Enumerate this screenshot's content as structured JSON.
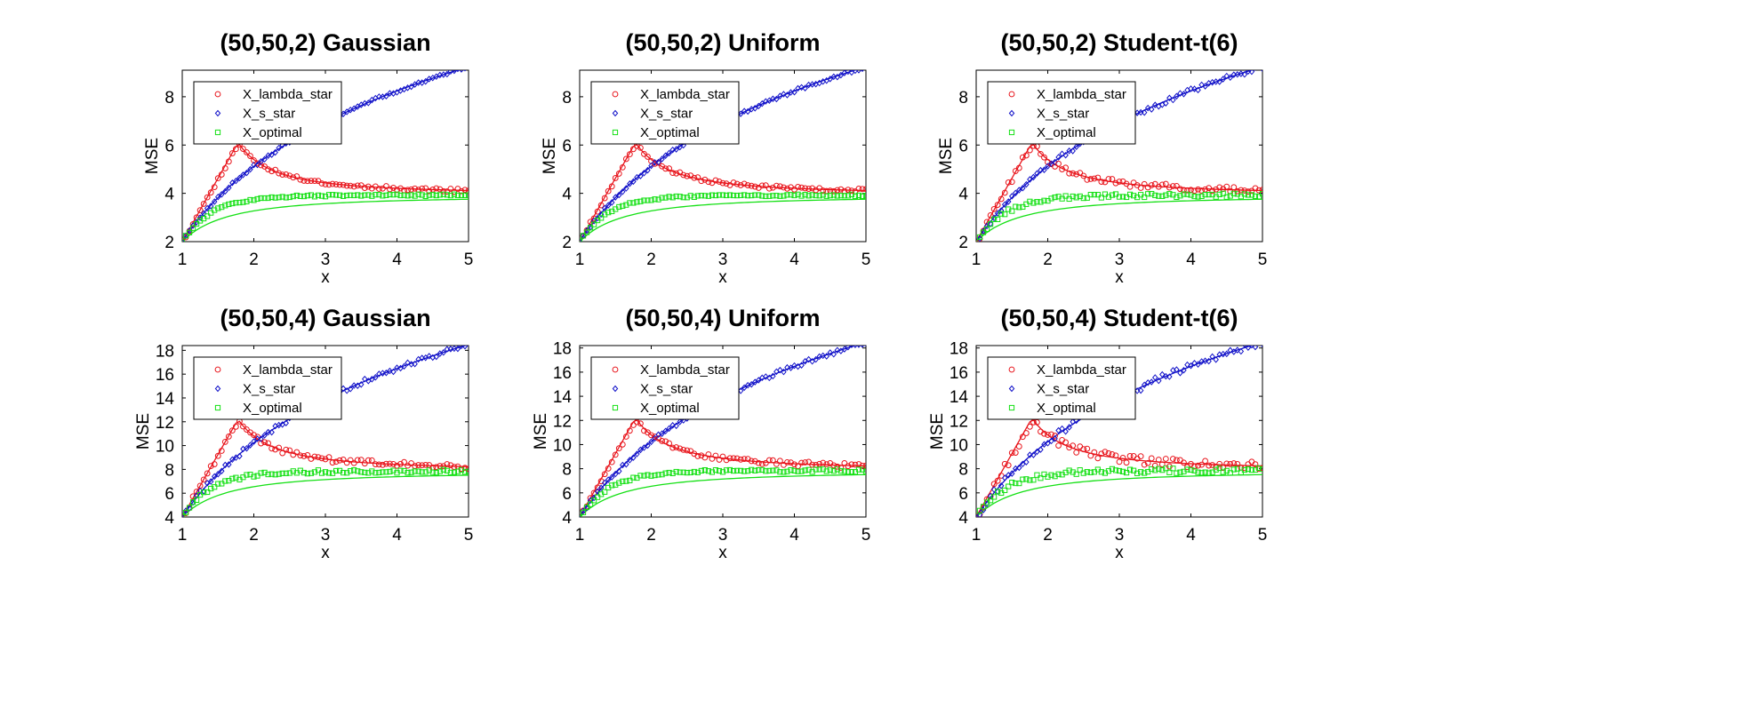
{
  "chart_data": [
    {
      "type": "scatter",
      "title": "(50,50,2) Gaussian",
      "xlabel": "x",
      "ylabel": "MSE",
      "xlim": [
        1,
        5
      ],
      "ylim": [
        2,
        9.1
      ],
      "xticks": [
        "1",
        "2",
        "3",
        "4",
        "5"
      ],
      "yticks": [
        "2",
        "4",
        "6",
        "8"
      ],
      "p": 2,
      "noise": 0.07,
      "seed": 11,
      "legend_placement": "top-left"
    },
    {
      "type": "scatter",
      "title": "(50,50,2) Uniform",
      "xlabel": "x",
      "ylabel": "MSE",
      "xlim": [
        1,
        5
      ],
      "ylim": [
        2,
        9.1
      ],
      "xticks": [
        "1",
        "2",
        "3",
        "4",
        "5"
      ],
      "yticks": [
        "2",
        "4",
        "6",
        "8"
      ],
      "p": 2,
      "noise": 0.07,
      "seed": 23,
      "legend_placement": "top-left"
    },
    {
      "type": "scatter",
      "title": "(50,50,2) Student-t(6)",
      "xlabel": "x",
      "ylabel": "MSE",
      "xlim": [
        1,
        5
      ],
      "ylim": [
        2,
        9.1
      ],
      "xticks": [
        "1",
        "2",
        "3",
        "4",
        "5"
      ],
      "yticks": [
        "2",
        "4",
        "6",
        "8"
      ],
      "p": 2,
      "noise": 0.13,
      "seed": 37,
      "legend_placement": "top-left"
    },
    {
      "type": "scatter",
      "title": "(50,50,4) Gaussian",
      "xlabel": "x",
      "ylabel": "MSE",
      "xlim": [
        1,
        5
      ],
      "ylim": [
        4,
        18.4
      ],
      "xticks": [
        "1",
        "2",
        "3",
        "4",
        "5"
      ],
      "yticks": [
        "4",
        "6",
        "8",
        "10",
        "12",
        "14",
        "16",
        "18"
      ],
      "p": 4,
      "noise": 0.12,
      "seed": 41,
      "legend_placement": "top-left"
    },
    {
      "type": "scatter",
      "title": "(50,50,4) Uniform",
      "xlabel": "x",
      "ylabel": "MSE",
      "xlim": [
        1,
        5
      ],
      "ylim": [
        4,
        18.2
      ],
      "xticks": [
        "1",
        "2",
        "3",
        "4",
        "5"
      ],
      "yticks": [
        "4",
        "6",
        "8",
        "10",
        "12",
        "14",
        "16",
        "18"
      ],
      "p": 4,
      "noise": 0.1,
      "seed": 53,
      "legend_placement": "top-left"
    },
    {
      "type": "scatter",
      "title": "(50,50,4) Student-t(6)",
      "xlabel": "x",
      "ylabel": "MSE",
      "xlim": [
        1,
        5
      ],
      "ylim": [
        4,
        18.2
      ],
      "xticks": [
        "1",
        "2",
        "3",
        "4",
        "5"
      ],
      "yticks": [
        "4",
        "6",
        "8",
        "10",
        "12",
        "14",
        "16",
        "18"
      ],
      "p": 4,
      "noise": 0.18,
      "seed": 67,
      "legend_placement": "top-left"
    }
  ],
  "legend": {
    "entries": [
      {
        "label": "X_lambda_star",
        "color": "#e8141b",
        "marker": "circle"
      },
      {
        "label": "X_s_star",
        "color": "#1010c8",
        "marker": "diamond"
      },
      {
        "label": "X_optimal",
        "color": "#14e014",
        "marker": "square"
      }
    ]
  },
  "series_colors": {
    "X_lambda_star": "#e8141b",
    "X_s_star": "#1010c8",
    "X_optimal": "#14e014"
  }
}
